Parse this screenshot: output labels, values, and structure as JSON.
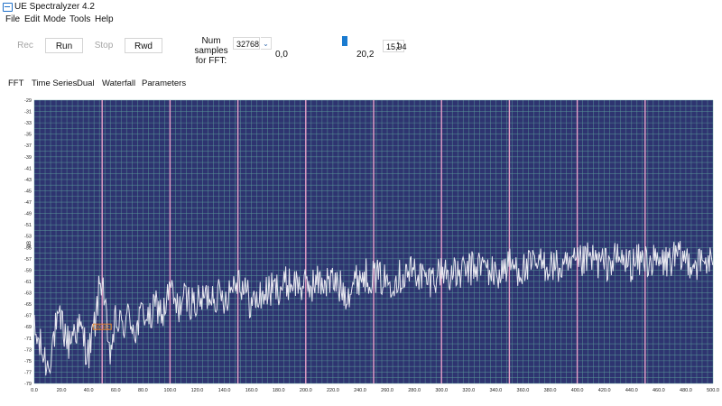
{
  "window": {
    "title": "UE Spectralyzer 4.2"
  },
  "menu": [
    "File",
    "Edit",
    "Mode",
    "Tools",
    "Help"
  ],
  "toolbar": {
    "rec_label": "Rec",
    "run_label": "Run",
    "stop_label": "Stop",
    "rwd_label": "Rwd",
    "num_samples_label_line1": "Num samples",
    "num_samples_label_line2": "for FFT:",
    "num_samples_value": "32768",
    "range_min": "0,0",
    "range_max": "20,2",
    "spin_value": "15,94"
  },
  "tabs": [
    "FFT",
    "Time Series",
    "Dual",
    "Waterfall",
    "Parameters"
  ],
  "chart_data": {
    "type": "line",
    "ylabel": "dB",
    "xlabel": "",
    "xlim": [
      0,
      500
    ],
    "ylim": [
      -79,
      -29
    ],
    "x_ticks": [
      "0.0",
      "20.0",
      "40.0",
      "60.0",
      "80.0",
      "100.0",
      "120.0",
      "140.0",
      "160.0",
      "180.0",
      "200.0",
      "220.0",
      "240.0",
      "260.0",
      "280.0",
      "300.0",
      "320.0",
      "340.0",
      "360.0",
      "380.0",
      "400.0",
      "420.0",
      "440.0",
      "460.0",
      "480.0",
      "500.0"
    ],
    "y_ticks": [
      "-29",
      "-31",
      "-33",
      "-35",
      "-37",
      "-39",
      "-41",
      "-43",
      "-45",
      "-47",
      "-49",
      "-51",
      "-53",
      "-55",
      "-57",
      "-59",
      "-61",
      "-63",
      "-65",
      "-67",
      "-69",
      "-71",
      "-73",
      "-75",
      "-77",
      "-79"
    ],
    "harmonic_lines_x": [
      50,
      100,
      150,
      200,
      250,
      300,
      350,
      400,
      450
    ],
    "marker": {
      "x": 50,
      "y": -69,
      "label": "50 Hz"
    },
    "colors": {
      "background": "#2e3470",
      "grid": "#5e9f9c",
      "trace": "#e8e8f0",
      "harmonic": "#e8a0c8"
    },
    "series": [
      {
        "x": [
          0,
          5,
          10,
          15,
          20,
          25,
          30,
          35,
          40,
          45,
          48,
          50,
          52,
          55,
          60,
          65,
          70,
          75,
          80,
          85,
          90,
          95,
          100,
          105,
          110,
          120,
          130,
          140,
          150,
          160,
          170,
          180,
          190,
          200,
          210,
          220,
          230,
          240,
          250,
          260,
          270,
          280,
          290,
          300,
          310,
          320,
          330,
          340,
          350,
          360,
          370,
          380,
          390,
          400,
          410,
          420,
          430,
          440,
          450,
          460,
          470,
          480,
          490,
          500
        ],
        "values": [
          -70,
          -73,
          -76,
          -70,
          -68,
          -72,
          -69,
          -70,
          -74,
          -68,
          -62,
          -60,
          -65,
          -75,
          -68,
          -69,
          -67,
          -70,
          -66,
          -68,
          -65,
          -67,
          -62,
          -66,
          -64,
          -65,
          -63,
          -64,
          -60,
          -65,
          -63,
          -62,
          -61,
          -62,
          -61,
          -61,
          -63,
          -60,
          -60,
          -61,
          -60,
          -59,
          -61,
          -59,
          -60,
          -59,
          -58,
          -60,
          -58,
          -59,
          -58,
          -58,
          -59,
          -58,
          -57,
          -58,
          -57,
          -58,
          -57,
          -58,
          -57,
          -57,
          -58,
          -57
        ]
      }
    ]
  }
}
